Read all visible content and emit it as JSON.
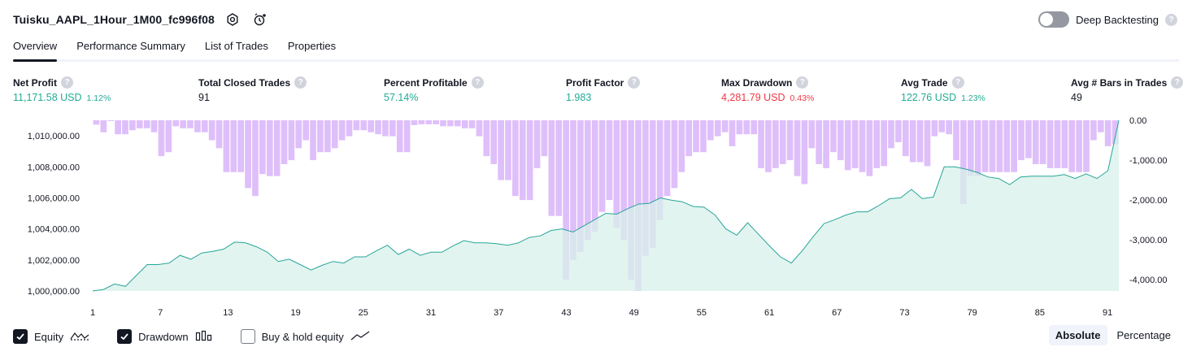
{
  "header": {
    "title": "Tuisku_AAPL_1Hour_1M00_fc996f08",
    "deep_backtesting_label": "Deep Backtesting",
    "help_glyph": "?"
  },
  "tabs": [
    {
      "label": "Overview"
    },
    {
      "label": "Performance Summary"
    },
    {
      "label": "List of Trades"
    },
    {
      "label": "Properties"
    }
  ],
  "stats": [
    {
      "label": "Net Profit",
      "value": "11,171.58 USD",
      "pct": "1.12%"
    },
    {
      "label": "Total Closed Trades",
      "value": "91",
      "pct": ""
    },
    {
      "label": "Percent Profitable",
      "value": "57.14%",
      "pct": ""
    },
    {
      "label": "Profit Factor",
      "value": "1.983",
      "pct": ""
    },
    {
      "label": "Max Drawdown",
      "value": "4,281.79 USD",
      "pct": "0.43%"
    },
    {
      "label": "Avg Trade",
      "value": "122.76 USD",
      "pct": "1.23%"
    },
    {
      "label": "Avg # Bars in Trades",
      "value": "49",
      "pct": ""
    }
  ],
  "colors": {
    "green": "#22ab94",
    "red": "#f23645",
    "drawdown_bar": "#dcbcfa",
    "equity_line": "#26a69a",
    "equity_fill": "#d8f0ea",
    "axis_text": "#131722"
  },
  "chart_data": {
    "type": "area",
    "x_ticks": [
      "1",
      "7",
      "13",
      "19",
      "25",
      "31",
      "37",
      "43",
      "49",
      "55",
      "61",
      "67",
      "73",
      "79",
      "85",
      "91"
    ],
    "y_left_ticks": [
      "1,010,000.00",
      "1,008,000.00",
      "1,006,000.00",
      "1,004,000.00",
      "1,002,000.00",
      "1,000,000.00"
    ],
    "y_right_ticks": [
      "0.00",
      "-1,000.00",
      "-2,000.00",
      "-3,000.00",
      "-4,000.00"
    ],
    "ylim_left": [
      1000000,
      1011000
    ],
    "ylim_right": [
      -4281.79,
      0
    ],
    "series": [
      {
        "name": "Equity",
        "values": [
          1000000,
          1000100,
          1000450,
          1000300,
          1001000,
          1001700,
          1001700,
          1001800,
          1002300,
          1002050,
          1002450,
          1002550,
          1002700,
          1003150,
          1003100,
          1002850,
          1002500,
          1001900,
          1002050,
          1001700,
          1001350,
          1001650,
          1001900,
          1001800,
          1002200,
          1002200,
          1002600,
          1002950,
          1002350,
          1002700,
          1002300,
          1002500,
          1002500,
          1002900,
          1003250,
          1003100,
          1003100,
          1003050,
          1002950,
          1003100,
          1003450,
          1003550,
          1003900,
          1004000,
          1003800,
          1004200,
          1004600,
          1005000,
          1004950,
          1005300,
          1005600,
          1005650,
          1006000,
          1005850,
          1005750,
          1005450,
          1005400,
          1004900,
          1004000,
          1003600,
          1004400,
          1003650,
          1002900,
          1002200,
          1001800,
          1002600,
          1003500,
          1004350,
          1004600,
          1004900,
          1005100,
          1005100,
          1005500,
          1005950,
          1006000,
          1006550,
          1005950,
          1006050,
          1008000,
          1008000,
          1007850,
          1007650,
          1007350,
          1007250,
          1006850,
          1007350,
          1007400,
          1007400,
          1007400,
          1007500,
          1007250,
          1007550,
          1007250,
          1007750,
          1011000
        ],
        "color": "#26a69a"
      },
      {
        "name": "Drawdown",
        "values": [
          -110,
          -300,
          -20,
          -350,
          -350,
          -250,
          -200,
          -200,
          -300,
          -900,
          -800,
          -150,
          -200,
          -200,
          -300,
          -300,
          -500,
          -700,
          -1300,
          -1300,
          -1300,
          -1700,
          -1900,
          -1350,
          -1400,
          -1400,
          -1100,
          -1000,
          -700,
          -500,
          -1000,
          -800,
          -800,
          -700,
          -500,
          -400,
          -250,
          -250,
          -300,
          -350,
          -400,
          -400,
          -800,
          -800,
          -120,
          -100,
          -100,
          -100,
          -150,
          -150,
          -150,
          -200,
          -200,
          -400,
          -900,
          -1100,
          -1500,
          -1500,
          -1900,
          -2000,
          -2000,
          -1200,
          -900,
          -2400,
          -2400,
          -4000,
          -3500,
          -3300,
          -3000,
          -2800,
          -2300,
          -2000,
          -2700,
          -3000,
          -4000,
          -4281.79,
          -3400,
          -3200,
          -2500,
          -1900,
          -1700,
          -1300,
          -900,
          -800,
          -800,
          -500,
          -400,
          -300,
          -650,
          -350,
          -350,
          -350,
          -1200,
          -1300,
          -1200,
          -1100,
          -1000,
          -1400,
          -1600,
          -700,
          -1100,
          -1200,
          -800,
          -1000,
          -1250,
          -1200,
          -1300,
          -1400,
          -1200,
          -1150,
          -700,
          -550,
          -900,
          -1050,
          -1050,
          -1150,
          -400,
          -300,
          -350,
          -1000,
          -2100,
          -1400,
          -1400,
          -1300,
          -1300,
          -1300,
          -1300,
          -1300,
          -1000,
          -950,
          -1100,
          -1100,
          -1200,
          -1200,
          -1200,
          -1300,
          -1300,
          -1300,
          -500,
          -300,
          -650,
          -600
        ],
        "color": "#dcbcfa"
      }
    ]
  },
  "footer": {
    "equity_label": "Equity",
    "drawdown_label": "Drawdown",
    "buyhold_label": "Buy & hold equity",
    "absolute_label": "Absolute",
    "percentage_label": "Percentage"
  }
}
